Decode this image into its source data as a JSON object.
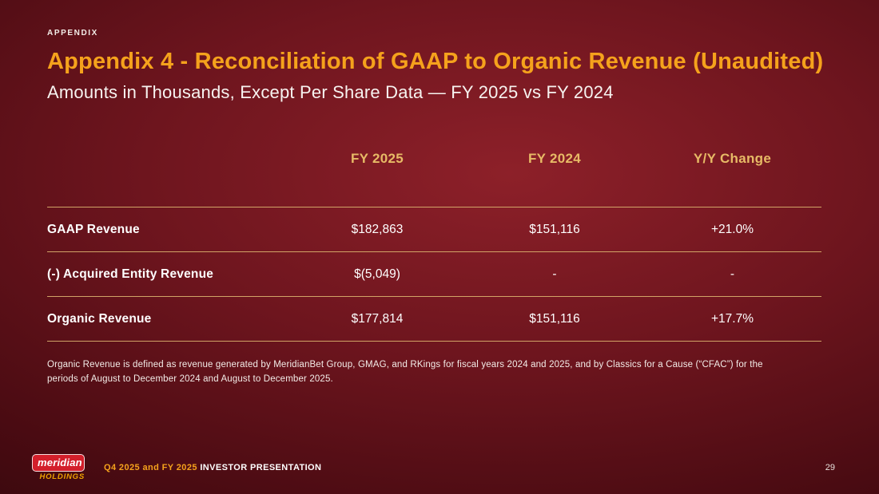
{
  "slide": {
    "eyebrow": "APPENDIX",
    "title": "Appendix 4 - Reconciliation of GAAP to Organic Revenue (Unaudited)",
    "subtitle": "Amounts in Thousands, Except Per Share Data — FY 2025 vs FY 2024",
    "footnote": "Organic Revenue is defined as revenue generated by MeridianBet Group, GMAG, and RKings for fiscal years 2024 and 2025, and by Classics for a Cause (“CFAC”) for the periods of August to December 2024 and August to December 2025.",
    "page_number": "29"
  },
  "table": {
    "col_headers": [
      "FY 2025",
      "FY 2024",
      "Y/Y Change"
    ],
    "rows": [
      {
        "label": "GAAP Revenue",
        "values": [
          "$182,863",
          "$151,116",
          "+21.0%"
        ]
      },
      {
        "label": "(-) Acquired Entity Revenue",
        "values": [
          "$(5,049)",
          "-",
          "-"
        ]
      },
      {
        "label": "Organic Revenue",
        "values": [
          "$177,814",
          "$151,116",
          "+17.7%"
        ]
      }
    ]
  },
  "footer": {
    "logo_line1": "meridian",
    "logo_line2": "HOLDINGS",
    "caption_highlight": "Q4 2025 and FY 2025",
    "caption_rest": " INVESTOR PRESENTATION"
  },
  "colors": {
    "accent_orange": "#f5a21c",
    "table_header_gold": "#e7ba66",
    "divider_gold": "#d6ac6b",
    "logo_red": "#d31f2b",
    "background_center": "#8d2029",
    "background_edge": "#1d0406"
  }
}
